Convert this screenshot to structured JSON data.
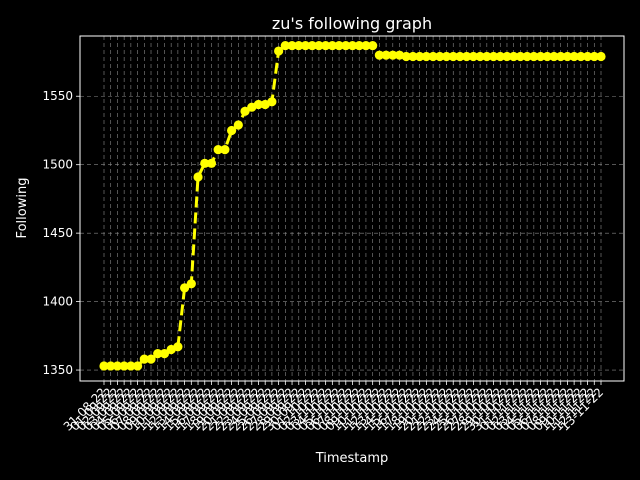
{
  "chart_data": {
    "type": "line",
    "title": "zu's following graph",
    "xlabel": "Timestamp",
    "ylabel": "Following",
    "ylim": [
      1342,
      1594
    ],
    "y_ticks": [
      1350,
      1400,
      1450,
      1500,
      1550
    ],
    "grid": true,
    "x_tick_labels": [
      "31-08-22",
      "01-09-22",
      "02-09-22",
      "03-09-22",
      "04-09-22",
      "05-09-22",
      "06-09-22",
      "07-09-22",
      "08-09-22",
      "09-09-22",
      "10-09-22",
      "11-09-22",
      "12-09-22",
      "13-09-22",
      "14-09-22",
      "15-09-22",
      "16-09-22",
      "17-09-22",
      "18-09-22",
      "19-09-22",
      "20-09-22",
      "21-09-22",
      "22-09-22",
      "23-09-22",
      "24-09-22",
      "25-09-22",
      "26-09-22",
      "27-09-22",
      "28-09-22",
      "29-09-22",
      "30-09-22",
      "01-10-22",
      "02-10-22",
      "03-10-22",
      "04-10-22",
      "05-10-22",
      "06-10-22",
      "07-10-22",
      "08-10-22",
      "09-10-22",
      "10-10-22",
      "11-10-22",
      "12-10-22",
      "13-10-22",
      "14-10-22",
      "15-10-22",
      "16-10-22",
      "17-10-22",
      "18-10-22",
      "19-10-22",
      "20-10-22",
      "21-10-22",
      "22-10-22",
      "23-10-22",
      "24-10-22",
      "25-10-22",
      "26-10-22",
      "27-10-22",
      "28-10-22",
      "29-10-22",
      "30-10-22",
      "31-10-22",
      "01-11-22",
      "02-11-22",
      "03-11-22",
      "04-11-22",
      "05-11-22",
      "06-11-22",
      "07-11-22",
      "08-11-22",
      "09-11-22",
      "10-11-22",
      "11-11-22",
      "12-11-22",
      "13-11-22"
    ],
    "series": [
      {
        "color": "#ffff00",
        "line_style": "dashed",
        "marker": "circle",
        "values": [
          1353,
          1353,
          1353,
          1353,
          1353,
          1353,
          1358,
          1358,
          1362,
          1362,
          1365,
          1367,
          1410,
          1413,
          1491,
          1501,
          1501,
          1511,
          1511,
          1525,
          1529,
          1539,
          1542,
          1544,
          1544,
          1546,
          1583,
          1587,
          1587,
          1587,
          1587,
          1587,
          1587,
          1587,
          1587,
          1587,
          1587,
          1587,
          1587,
          1587,
          1587,
          1580,
          1580,
          1580,
          1580,
          1579,
          1579,
          1579,
          1579,
          1579,
          1579,
          1579,
          1579,
          1579,
          1579,
          1579,
          1579,
          1579,
          1579,
          1579,
          1579,
          1579,
          1579,
          1579,
          1579,
          1579,
          1579,
          1579,
          1579,
          1579,
          1579,
          1579,
          1579,
          1579,
          1579
        ]
      }
    ]
  }
}
